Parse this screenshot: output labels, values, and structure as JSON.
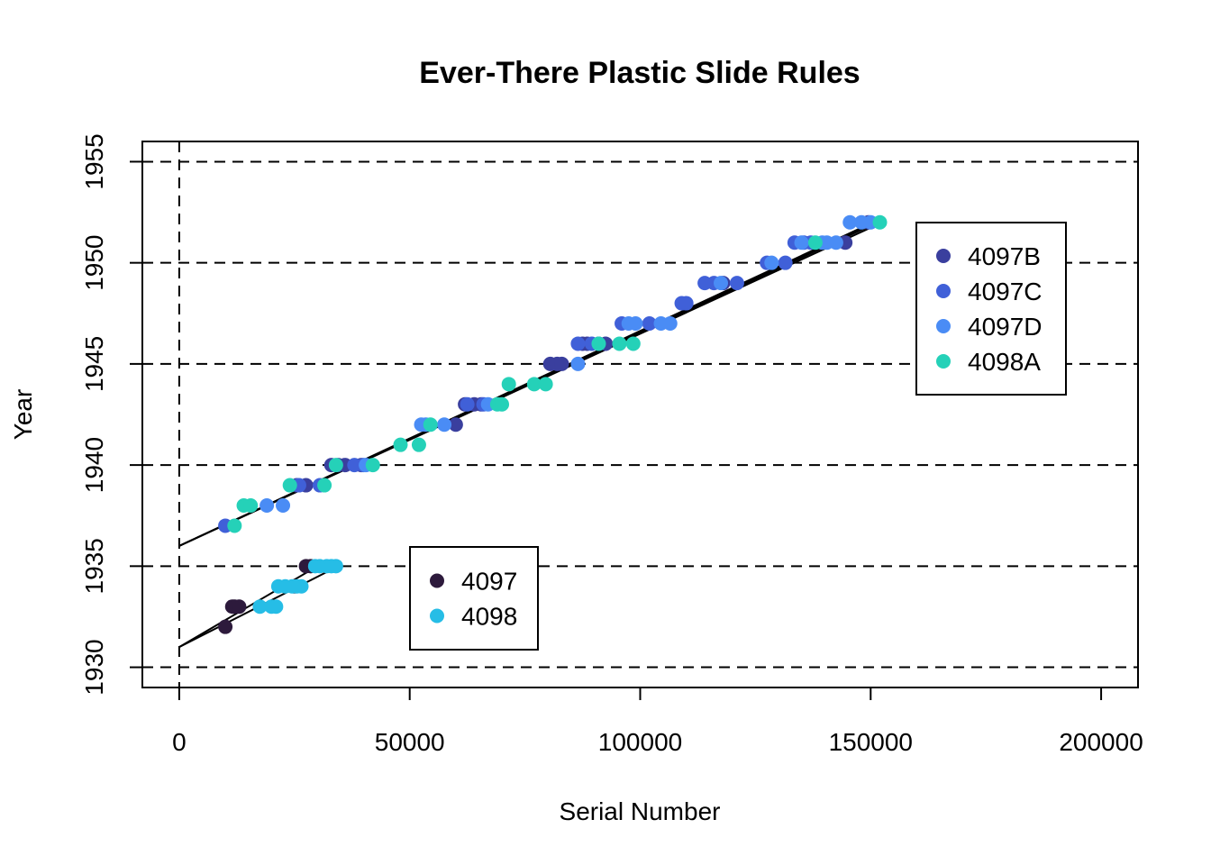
{
  "chart_data": {
    "type": "scatter",
    "title": "Ever-There Plastic Slide Rules",
    "xlabel": "Serial Number",
    "ylabel": "Year",
    "xlim": [
      -8000,
      208000
    ],
    "ylim": [
      1929,
      1956
    ],
    "x_ticks": [
      0,
      50000,
      100000,
      150000,
      200000
    ],
    "x_tick_labels": [
      "0",
      "50000",
      "100000",
      "150000",
      "200000"
    ],
    "y_ticks": [
      1930,
      1935,
      1940,
      1945,
      1950,
      1955
    ],
    "y_tick_labels": [
      "1930",
      "1935",
      "1940",
      "1945",
      "1950",
      "1955"
    ],
    "grid": {
      "horizontal_dashed_at": [
        1930,
        1935,
        1940,
        1945,
        1950,
        1955
      ],
      "vertical_dashed_at": [
        0
      ]
    },
    "legends": [
      {
        "placement": "right-upper",
        "entries": [
          "4097B",
          "4097C",
          "4097D",
          "4098A"
        ]
      },
      {
        "placement": "center-lower",
        "entries": [
          "4097",
          "4098"
        ]
      }
    ],
    "series": [
      {
        "name": "4097",
        "color": "#2d1a3c",
        "points": [
          [
            10000,
            1932
          ],
          [
            11500,
            1933
          ],
          [
            12000,
            1933
          ],
          [
            13000,
            1933
          ],
          [
            25000,
            1934
          ],
          [
            27500,
            1935
          ],
          [
            28500,
            1935
          ]
        ],
        "fit": [
          [
            0,
            1931.0
          ],
          [
            30000,
            1935.0
          ]
        ]
      },
      {
        "name": "4098",
        "color": "#26bde6",
        "points": [
          [
            17500,
            1933
          ],
          [
            20000,
            1933
          ],
          [
            21000,
            1933
          ],
          [
            21500,
            1934
          ],
          [
            23000,
            1934
          ],
          [
            24500,
            1934
          ],
          [
            25500,
            1934
          ],
          [
            26500,
            1934
          ],
          [
            29500,
            1935
          ],
          [
            30500,
            1935
          ],
          [
            32000,
            1935
          ],
          [
            33000,
            1935
          ],
          [
            34000,
            1935
          ]
        ],
        "fit": [
          [
            0,
            1931.0
          ],
          [
            34500,
            1935.0
          ]
        ]
      },
      {
        "name": "4097B",
        "color": "#3a3f9e",
        "points": [
          [
            25500,
            1939
          ],
          [
            27500,
            1939
          ],
          [
            33000,
            1940
          ],
          [
            34500,
            1940
          ],
          [
            36000,
            1940
          ],
          [
            39500,
            1940
          ],
          [
            60000,
            1942
          ],
          [
            62000,
            1943
          ],
          [
            64000,
            1943
          ],
          [
            65500,
            1943
          ],
          [
            80500,
            1945
          ],
          [
            82000,
            1945
          ],
          [
            83000,
            1945
          ],
          [
            87500,
            1946
          ],
          [
            88500,
            1946
          ],
          [
            91000,
            1946
          ],
          [
            92500,
            1946
          ],
          [
            118000,
            1949
          ],
          [
            144500,
            1951
          ],
          [
            149500,
            1952
          ]
        ],
        "fit": [
          [
            0,
            1936.0
          ],
          [
            150500,
            1952.0
          ]
        ]
      },
      {
        "name": "4097C",
        "color": "#4060d8",
        "points": [
          [
            10000,
            1937
          ],
          [
            26000,
            1939
          ],
          [
            30500,
            1939
          ],
          [
            38000,
            1940
          ],
          [
            40000,
            1940
          ],
          [
            62500,
            1943
          ],
          [
            66000,
            1943
          ],
          [
            86500,
            1946
          ],
          [
            89500,
            1946
          ],
          [
            96000,
            1947
          ],
          [
            102000,
            1947
          ],
          [
            109000,
            1948
          ],
          [
            110000,
            1948
          ],
          [
            114000,
            1949
          ],
          [
            116000,
            1949
          ],
          [
            121000,
            1949
          ],
          [
            127500,
            1950
          ],
          [
            131500,
            1950
          ],
          [
            133500,
            1951
          ],
          [
            135500,
            1951
          ],
          [
            137000,
            1951
          ]
        ],
        "fit": [
          [
            0,
            1936.0
          ],
          [
            151000,
            1952.0
          ]
        ]
      },
      {
        "name": "4097D",
        "color": "#4a8cf5",
        "points": [
          [
            19000,
            1938
          ],
          [
            22500,
            1938
          ],
          [
            40500,
            1940
          ],
          [
            52500,
            1942
          ],
          [
            53500,
            1942
          ],
          [
            57500,
            1942
          ],
          [
            67000,
            1943
          ],
          [
            86500,
            1945
          ],
          [
            97500,
            1947
          ],
          [
            99000,
            1947
          ],
          [
            104500,
            1947
          ],
          [
            106500,
            1947
          ],
          [
            117500,
            1949
          ],
          [
            128500,
            1950
          ],
          [
            135000,
            1951
          ],
          [
            139500,
            1951
          ],
          [
            140500,
            1951
          ],
          [
            142500,
            1951
          ],
          [
            145500,
            1952
          ],
          [
            148000,
            1952
          ],
          [
            150000,
            1952
          ]
        ],
        "fit": [
          [
            0,
            1936.0
          ],
          [
            151500,
            1952.0
          ]
        ]
      },
      {
        "name": "4098A",
        "color": "#25d1b8",
        "points": [
          [
            12000,
            1937
          ],
          [
            14000,
            1938
          ],
          [
            15500,
            1938
          ],
          [
            24000,
            1939
          ],
          [
            31500,
            1939
          ],
          [
            34000,
            1940
          ],
          [
            42000,
            1940
          ],
          [
            48000,
            1941
          ],
          [
            52000,
            1941
          ],
          [
            54500,
            1942
          ],
          [
            69000,
            1943
          ],
          [
            70000,
            1943
          ],
          [
            71500,
            1944
          ],
          [
            77000,
            1944
          ],
          [
            79500,
            1944
          ],
          [
            91000,
            1946
          ],
          [
            95500,
            1946
          ],
          [
            98500,
            1946
          ],
          [
            138000,
            1951
          ],
          [
            152000,
            1952
          ]
        ],
        "fit": [
          [
            0,
            1936.0
          ],
          [
            152500,
            1952.0
          ]
        ]
      }
    ]
  }
}
